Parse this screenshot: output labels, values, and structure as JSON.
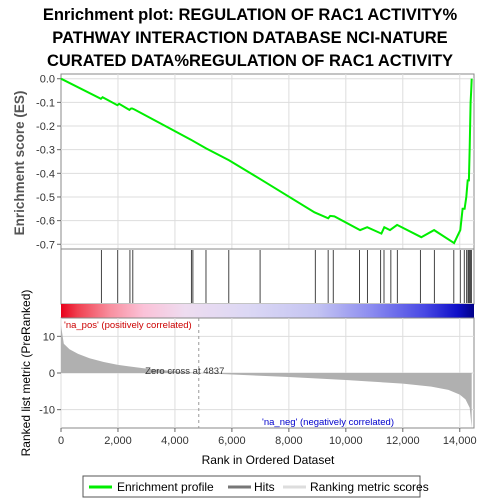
{
  "title_lines": [
    "Enrichment plot: REGULATION OF RAC1 ACTIVITY%",
    "PATHWAY INTERACTION DATABASE NCI-NATURE",
    "CURATED DATA%REGULATION OF RAC1 ACTIVITY"
  ],
  "colors": {
    "es_line": "#00ee00",
    "hit": "#444444",
    "metric_fill": "#b0b0b0",
    "pos_text": "#cc0000",
    "neg_text": "#0000cc",
    "grid": "#dddddd"
  },
  "chart_data": [
    {
      "type": "line",
      "name": "enrichment-score",
      "ylabel": "Enrichment score (ES)",
      "ylim": [
        -0.72,
        0.02
      ],
      "yticks": [
        0.0,
        -0.1,
        -0.2,
        -0.3,
        -0.4,
        -0.5,
        -0.6,
        -0.7
      ],
      "ytick_labels": [
        "0.0",
        "-0.1",
        "-0.2",
        "-0.3",
        "-0.4",
        "-0.5",
        "-0.6",
        "-0.7"
      ],
      "xlim": [
        0,
        14500
      ],
      "grid": true,
      "x": [
        0,
        1400,
        1460,
        1980,
        2040,
        2400,
        2460,
        2500,
        2580,
        4560,
        4620,
        5100,
        5900,
        7000,
        8900,
        9380,
        9450,
        9600,
        10500,
        10750,
        11250,
        11350,
        11550,
        11800,
        12650,
        13100,
        13800,
        14020,
        14100,
        14170,
        14230,
        14280,
        14320,
        14350,
        14380,
        14400,
        14420
      ],
      "y": [
        0.0,
        -0.085,
        -0.078,
        -0.112,
        -0.106,
        -0.132,
        -0.126,
        -0.126,
        -0.13,
        -0.258,
        -0.262,
        -0.295,
        -0.345,
        -0.425,
        -0.565,
        -0.59,
        -0.58,
        -0.582,
        -0.64,
        -0.628,
        -0.655,
        -0.628,
        -0.64,
        -0.618,
        -0.67,
        -0.64,
        -0.695,
        -0.64,
        -0.55,
        -0.55,
        -0.5,
        -0.43,
        -0.43,
        -0.29,
        -0.1,
        -0.05,
        0.0
      ]
    },
    {
      "type": "scatter",
      "name": "gene-hits",
      "x": [
        1420,
        1990,
        2420,
        2520,
        4580,
        4630,
        5090,
        5890,
        6990,
        8930,
        9380,
        9560,
        10480,
        10760,
        11220,
        11340,
        11580,
        11810,
        12620,
        13110,
        13790,
        14020,
        14160,
        14240,
        14290,
        14320,
        14350,
        14380,
        14410
      ]
    },
    {
      "type": "area",
      "name": "ranked-list-metric",
      "ylabel": "Ranked list metric (PreRanked)",
      "xlabel": "Rank in Ordered Dataset",
      "xlim": [
        0,
        14500
      ],
      "ylim": [
        -15,
        15
      ],
      "yticks": [
        10,
        0,
        -10
      ],
      "ytick_labels": [
        "10",
        "0",
        "-10"
      ],
      "xticks": [
        0,
        2000,
        4000,
        6000,
        8000,
        10000,
        12000,
        14000
      ],
      "xtick_labels": [
        "0",
        "2,000",
        "4,000",
        "6,000",
        "8,000",
        "10,000",
        "12,000",
        "14,000"
      ],
      "x": [
        0,
        100,
        300,
        600,
        1000,
        1500,
        2000,
        3000,
        4000,
        4837,
        6000,
        8000,
        10000,
        12000,
        13000,
        13600,
        14000,
        14200,
        14350,
        14420
      ],
      "y": [
        13,
        8,
        6.5,
        5.2,
        4,
        3,
        2.2,
        1.2,
        0.5,
        0,
        -0.4,
        -1.1,
        -1.9,
        -2.9,
        -3.7,
        -4.6,
        -5.9,
        -7.2,
        -9.5,
        -15
      ],
      "annotation": "Zero cross at 4837",
      "zero_cross": 4837
    }
  ],
  "labels": {
    "pos": "'na_pos' (positively correlated)",
    "neg": "'na_neg' (negatively correlated)"
  },
  "legend": {
    "items": [
      {
        "label": "Enrichment profile",
        "swatch_color": "#00ee00",
        "icon": "green-line-icon"
      },
      {
        "label": "Hits",
        "swatch_color": "#777777",
        "icon": "gray-line-icon"
      },
      {
        "label": "Ranking metric scores",
        "swatch_color": "#dddddd",
        "icon": "light-line-icon"
      }
    ]
  }
}
